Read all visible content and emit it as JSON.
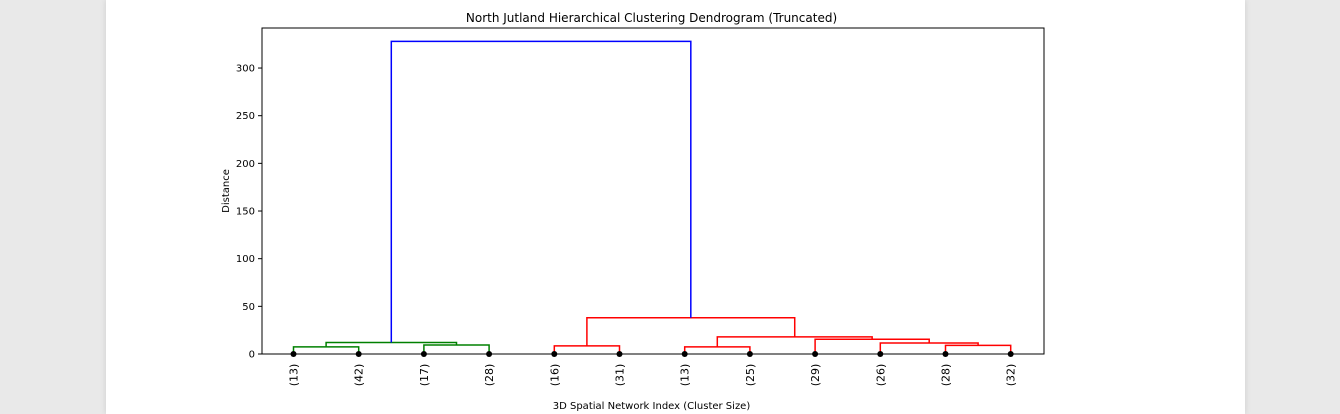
{
  "chart_data": {
    "type": "dendrogram",
    "title": "North Jutland Hierarchical Clustering Dendrogram (Truncated)",
    "xlabel": "3D Spatial Network Index (Cluster Size)",
    "ylabel": "Distance",
    "ylim": [
      0,
      342
    ],
    "yticks": [
      0,
      50,
      100,
      150,
      200,
      250,
      300
    ],
    "leaves": [
      "(13)",
      "(42)",
      "(17)",
      "(28)",
      "(16)",
      "(31)",
      "(13)",
      "(25)",
      "(29)",
      "(26)",
      "(28)",
      "(32)"
    ],
    "merges": [
      {
        "left": {
          "leaf": 0
        },
        "right": {
          "leaf": 1
        },
        "height": 7.5,
        "color": "#008000"
      },
      {
        "left": {
          "leaf": 2
        },
        "right": {
          "leaf": 3
        },
        "height": 9.5,
        "color": "#008000"
      },
      {
        "left": {
          "merge": 0
        },
        "right": {
          "merge": 1
        },
        "height": 12.0,
        "color": "#008000"
      },
      {
        "left": {
          "leaf": 4
        },
        "right": {
          "leaf": 5
        },
        "height": 8.5,
        "color": "#ff0000"
      },
      {
        "left": {
          "leaf": 6
        },
        "right": {
          "leaf": 7
        },
        "height": 7.5,
        "color": "#ff0000"
      },
      {
        "left": {
          "leaf": 10
        },
        "right": {
          "leaf": 11
        },
        "height": 9.0,
        "color": "#ff0000"
      },
      {
        "left": {
          "leaf": 9
        },
        "right": {
          "merge": 5
        },
        "height": 11.5,
        "color": "#ff0000"
      },
      {
        "left": {
          "leaf": 8
        },
        "right": {
          "merge": 6
        },
        "height": 15.5,
        "color": "#ff0000"
      },
      {
        "left": {
          "merge": 4
        },
        "right": {
          "merge": 7
        },
        "height": 18.0,
        "color": "#ff0000"
      },
      {
        "left": {
          "merge": 3
        },
        "right": {
          "merge": 8
        },
        "height": 38.0,
        "color": "#ff0000"
      },
      {
        "left": {
          "merge": 2
        },
        "right": {
          "merge": 9
        },
        "height": 328.0,
        "color": "#0000ff"
      }
    ],
    "colors": {
      "cluster_a": "#008000",
      "cluster_b": "#ff0000",
      "root": "#0000ff",
      "leaf_marker": "#000000"
    }
  }
}
